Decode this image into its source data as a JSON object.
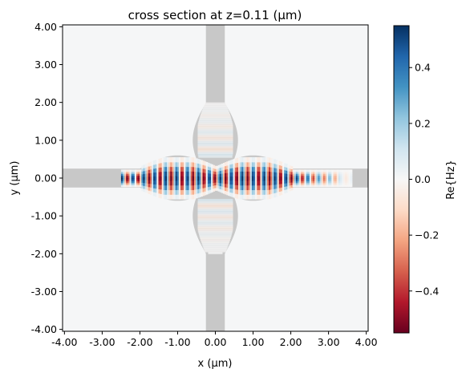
{
  "chart_data": {
    "type": "heatmap",
    "title": "cross section at z=0.11 (µm)",
    "xlabel": "x (µm)",
    "ylabel": "y (µm)",
    "xlim": [
      -4.05,
      4.05
    ],
    "ylim": [
      -4.05,
      4.05
    ],
    "xticks": [
      -4,
      -3,
      -2,
      -1,
      0,
      1,
      2,
      3,
      4
    ],
    "xtick_labels": [
      "-4.00",
      "-3.00",
      "-2.00",
      "-1.00",
      "0.00",
      "1.00",
      "2.00",
      "3.00",
      "4.00"
    ],
    "yticks": [
      4,
      3,
      2,
      1,
      0,
      -1,
      -2,
      -3,
      -4
    ],
    "ytick_labels": [
      "4.00",
      "3.00",
      "2.00",
      "1.00",
      "0.00",
      "-1.00",
      "-2.00",
      "-3.00",
      "-4.00"
    ],
    "colorbar": {
      "label": "Re{Hz}",
      "range": [
        -0.55,
        0.55
      ],
      "ticks": [
        0.4,
        0.2,
        0.0,
        -0.2,
        -0.4
      ],
      "tick_labels": [
        "0.4",
        "0.2",
        "0.0",
        "−0.2",
        "−0.4"
      ],
      "colormap": "RdBu",
      "color_stops": [
        "#67001f",
        "#b2182b",
        "#d6604d",
        "#f4a582",
        "#fddbc7",
        "#f7f7f7",
        "#d1e5f0",
        "#92c5de",
        "#4393c3",
        "#2166ac",
        "#053061"
      ]
    },
    "structure": {
      "waveguide_width": 0.5,
      "taper_start": 2.0,
      "taper_max_half_width": 0.55,
      "fill_color": "#c8c8c8"
    },
    "field": {
      "source_x_start": -2.5,
      "decay_x_end": 3.6,
      "amplitude": 0.55,
      "period_x": 0.29
    },
    "background": "#f5f6f7"
  }
}
